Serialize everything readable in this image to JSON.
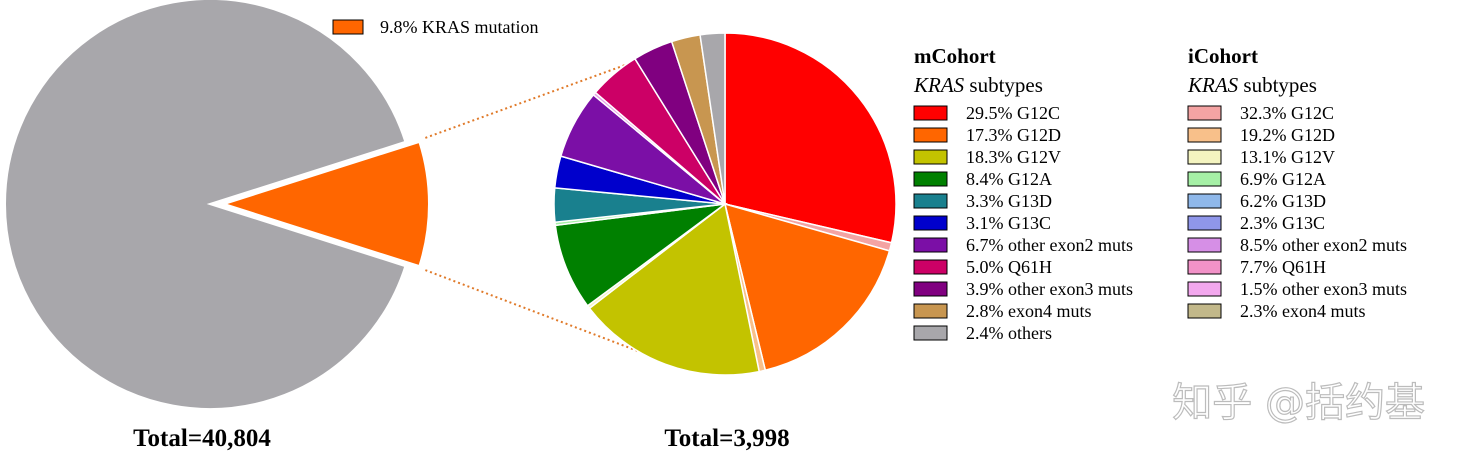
{
  "chart_data": {
    "type": "pie",
    "overall": {
      "total_label": "Total=40,804",
      "slices": [
        {
          "label": "KRAS mutation",
          "value": 9.8,
          "value_text": "9.8%",
          "color": "#ff6600",
          "exploded": true
        },
        {
          "label": "",
          "value": 90.2,
          "value_text": "",
          "color": "#a8a7ab",
          "exploded": false
        }
      ],
      "legend": {
        "text": "9.8%  KRAS mutation",
        "color": "#ff6600"
      }
    },
    "subtypes": {
      "total_label": "Total=3,998",
      "slices": [
        {
          "label": "G12C",
          "value": 29.5,
          "color": "#ff0000"
        },
        {
          "label": "",
          "value": 0.8,
          "color": "#f4a3a3"
        },
        {
          "label": "G12D",
          "value": 17.3,
          "color": "#ff6600"
        },
        {
          "label": "",
          "value": 0.6,
          "color": "#f8c08a"
        },
        {
          "label": "G12V",
          "value": 18.3,
          "color": "#c3c300"
        },
        {
          "label": "",
          "value": 0.3,
          "color": "#f4f4c0"
        },
        {
          "label": "G12A",
          "value": 8.4,
          "color": "#008000"
        },
        {
          "label": "",
          "value": 0.3,
          "color": "#a6f0a6"
        },
        {
          "label": "G13D",
          "value": 3.3,
          "color": "#19808e"
        },
        {
          "label": "G13C",
          "value": 3.1,
          "color": "#0000cc"
        },
        {
          "label": "other exon2 muts",
          "value": 6.7,
          "color": "#7b0fa6"
        },
        {
          "label": "",
          "value": 0.3,
          "color": "#e8a3e8"
        },
        {
          "label": "Q61H",
          "value": 5.0,
          "color": "#cc0066"
        },
        {
          "label": "other exon3 muts",
          "value": 3.9,
          "color": "#800080"
        },
        {
          "label": "exon4 muts",
          "value": 2.8,
          "color": "#c89650"
        },
        {
          "label": "others",
          "value": 2.4,
          "color": "#a8a7ab"
        }
      ]
    },
    "legend_mcohort": {
      "title": "mCohort",
      "subtitle_italic": "KRAS",
      "subtitle_rest": " subtypes",
      "items": [
        {
          "pct": "29.5%",
          "label": "G12C",
          "color": "#ff0000"
        },
        {
          "pct": "17.3%",
          "label": "G12D",
          "color": "#ff6600"
        },
        {
          "pct": "18.3%",
          "label": "G12V",
          "color": "#c3c300"
        },
        {
          "pct": "8.4%",
          "label": "G12A",
          "color": "#008000"
        },
        {
          "pct": "3.3%",
          "label": "G13D",
          "color": "#19808e"
        },
        {
          "pct": "3.1%",
          "label": "G13C",
          "color": "#0000cc"
        },
        {
          "pct": "6.7%",
          "label": "other exon2 muts",
          "color": "#7b0fa6"
        },
        {
          "pct": "5.0%",
          "label": "Q61H",
          "color": "#cc0066"
        },
        {
          "pct": "3.9%",
          "label": "other exon3 muts",
          "color": "#800080"
        },
        {
          "pct": "2.8%",
          "label": "exon4 muts",
          "color": "#c89650"
        },
        {
          "pct": "2.4%",
          "label": "others",
          "color": "#a8a7ab"
        }
      ]
    },
    "legend_icohort": {
      "title": "iCohort",
      "subtitle_italic": "KRAS",
      "subtitle_rest": " subtypes",
      "items": [
        {
          "pct": "32.3%",
          "label": "G12C",
          "color": "#f4a3a3"
        },
        {
          "pct": "19.2%",
          "label": "G12D",
          "color": "#f8c08a"
        },
        {
          "pct": "13.1%",
          "label": "G12V",
          "color": "#f4f4c0"
        },
        {
          "pct": "6.9%",
          "label": "G12A",
          "color": "#a6f0a6"
        },
        {
          "pct": "6.2%",
          "label": "G13D",
          "color": "#8fb8ea"
        },
        {
          "pct": "2.3%",
          "label": "G13C",
          "color": "#8f96ea"
        },
        {
          "pct": "8.5%",
          "label": "other exon2 muts",
          "color": "#d68fe6"
        },
        {
          "pct": "7.7%",
          "label": "Q61H",
          "color": "#f292c8"
        },
        {
          "pct": "1.5%",
          "label": "other exon3 muts",
          "color": "#f3a8ee"
        },
        {
          "pct": "2.3%",
          "label": "exon4 muts",
          "color": "#c2b88a"
        }
      ]
    },
    "connector_color": "#e07a2a",
    "watermark": "知乎 @括约基"
  }
}
